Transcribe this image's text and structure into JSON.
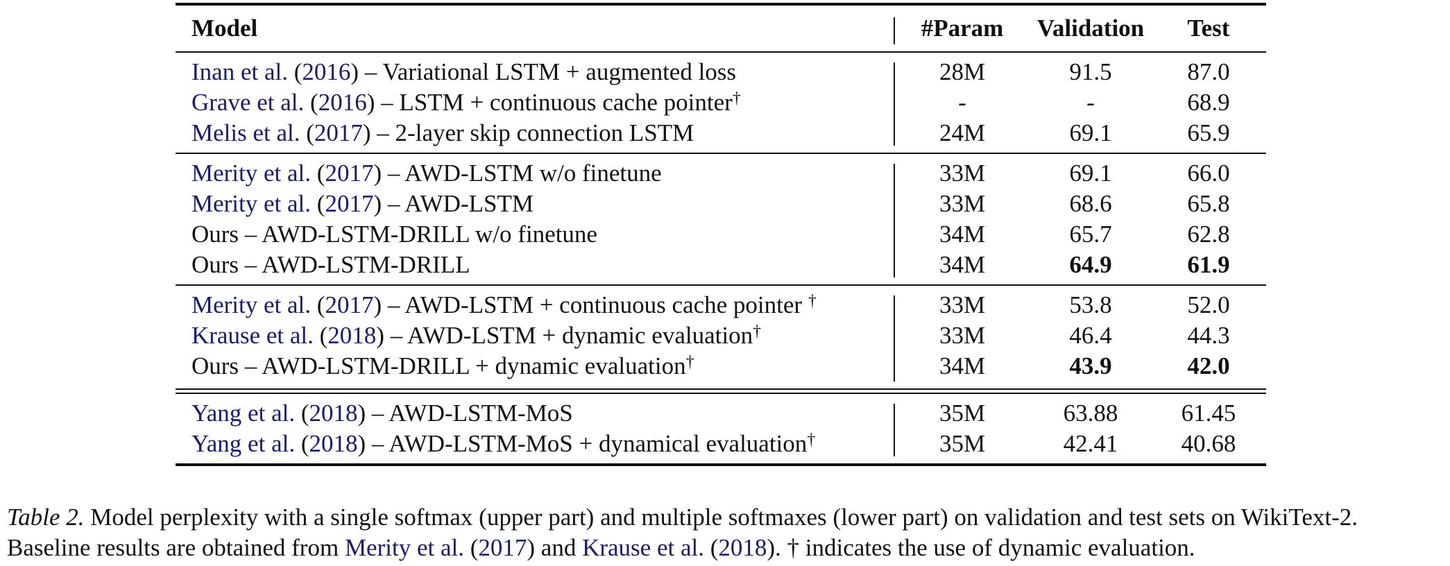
{
  "table": {
    "headers": {
      "model": "Model",
      "param": "#Param",
      "validation": "Validation",
      "test": "Test"
    },
    "groups": [
      {
        "rows": [
          {
            "cite": "Inan et al.",
            "year": "2016",
            "desc": ") – Variational LSTM + augmented loss",
            "dagger": "",
            "param": "28M",
            "val": "91.5",
            "test": "87.0",
            "bold_val": false,
            "bold_test": false
          },
          {
            "cite": "Grave et al.",
            "year": "2016",
            "desc": ") – LSTM + continuous cache pointer",
            "dagger": "†",
            "param": "-",
            "val": "-",
            "test": "68.9",
            "bold_val": false,
            "bold_test": false
          },
          {
            "cite": "Melis et al.",
            "year": "2017",
            "desc": ") – 2-layer skip connection LSTM",
            "dagger": "",
            "param": "24M",
            "val": "69.1",
            "test": "65.9",
            "bold_val": false,
            "bold_test": false
          }
        ]
      },
      {
        "rows": [
          {
            "cite": "Merity et al.",
            "year": "2017",
            "desc": ") – AWD-LSTM w/o finetune",
            "dagger": "",
            "param": "33M",
            "val": "69.1",
            "test": "66.0",
            "bold_val": false,
            "bold_test": false
          },
          {
            "cite": "Merity et al.",
            "year": "2017",
            "desc": ") – AWD-LSTM",
            "dagger": "",
            "param": "33M",
            "val": "68.6",
            "test": "65.8",
            "bold_val": false,
            "bold_test": false
          },
          {
            "cite": "",
            "year": "",
            "desc": "Ours – AWD-LSTM-DRILL w/o finetune",
            "dagger": "",
            "param": "34M",
            "val": "65.7",
            "test": "62.8",
            "bold_val": false,
            "bold_test": false
          },
          {
            "cite": "",
            "year": "",
            "desc": "Ours – AWD-LSTM-DRILL",
            "dagger": "",
            "param": "34M",
            "val": "64.9",
            "test": "61.9",
            "bold_val": true,
            "bold_test": true
          }
        ]
      },
      {
        "rows": [
          {
            "cite": "Merity et al.",
            "year": "2017",
            "desc": ") – AWD-LSTM + continuous cache pointer ",
            "dagger": "†",
            "param": "33M",
            "val": "53.8",
            "test": "52.0",
            "bold_val": false,
            "bold_test": false
          },
          {
            "cite": "Krause et al.",
            "year": "2018",
            "desc": ") – AWD-LSTM + dynamic evaluation",
            "dagger": "†",
            "param": "33M",
            "val": "46.4",
            "test": "44.3",
            "bold_val": false,
            "bold_test": false
          },
          {
            "cite": "",
            "year": "",
            "desc": "Ours – AWD-LSTM-DRILL + dynamic evaluation",
            "dagger": "†",
            "param": "34M",
            "val": "43.9",
            "test": "42.0",
            "bold_val": true,
            "bold_test": true
          }
        ]
      },
      {
        "rows": [
          {
            "cite": "Yang et al.",
            "year": "2018",
            "desc": ") – AWD-LSTM-MoS",
            "dagger": "",
            "param": "35M",
            "val": "63.88",
            "test": "61.45",
            "bold_val": false,
            "bold_test": false
          },
          {
            "cite": "Yang et al.",
            "year": "2018",
            "desc": ") – AWD-LSTM-MoS + dynamical evaluation",
            "dagger": "†",
            "param": "35M",
            "val": "42.41",
            "test": "40.68",
            "bold_val": false,
            "bold_test": false
          }
        ]
      }
    ]
  },
  "caption": {
    "label": "Table 2.",
    "text1": " Model perplexity with a single softmax (upper part) and multiple softmaxes (lower part) on validation and test sets on WikiText-2. Baseline results are obtained from ",
    "cite1": "Merity et al.",
    "year1": "2017",
    "text2": ") and ",
    "cite2": "Krause et al.",
    "year2": "2018",
    "text3": "). † indicates the use of dynamic evaluation."
  }
}
